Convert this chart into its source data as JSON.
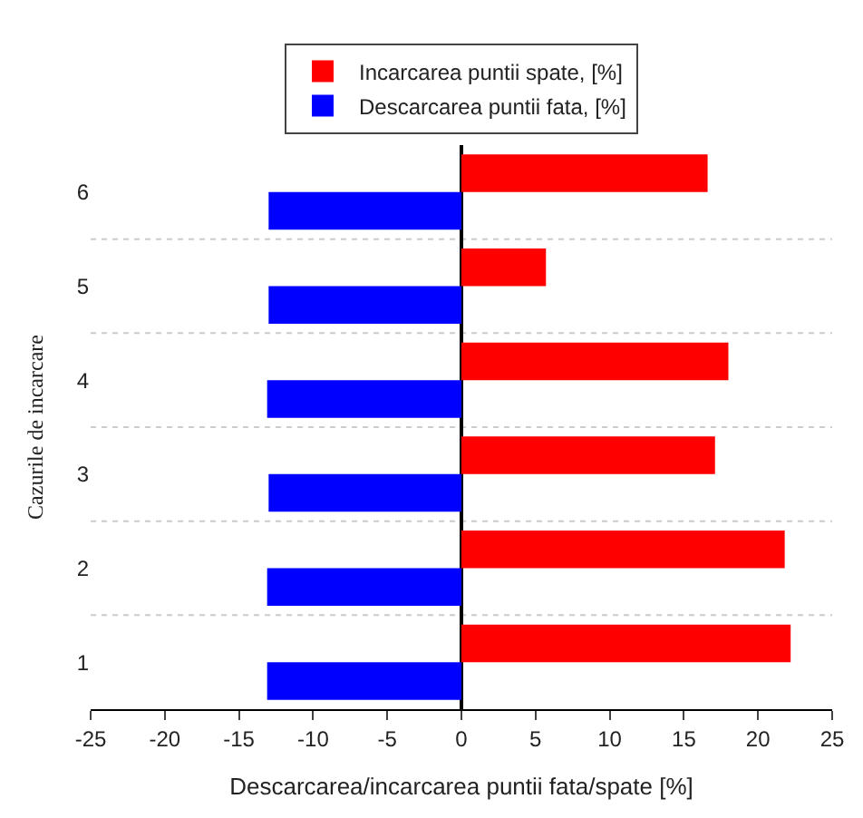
{
  "chart_data": {
    "type": "bar",
    "orientation": "horizontal",
    "xlabel": "Descarcarea/incarcarea puntii fata/spate [%]",
    "ylabel": "Cazurile de incarcare",
    "categories": [
      "6",
      "5",
      "4",
      "3",
      "2",
      "1"
    ],
    "series": [
      {
        "name": "Incarcarea puntii spate, [%]",
        "color": "#ff0000",
        "values": [
          16.6,
          5.7,
          18.0,
          17.1,
          21.8,
          22.2
        ]
      },
      {
        "name": "Descarcarea puntii fata, [%]",
        "color": "#0000ff",
        "values": [
          -13.0,
          -13.0,
          -13.1,
          -13.0,
          -13.1,
          -13.1
        ]
      }
    ],
    "xlim": [
      -25,
      25
    ],
    "xticks": [
      -25,
      -20,
      -15,
      -10,
      -5,
      0,
      5,
      10,
      15,
      20,
      25
    ],
    "grid": "y",
    "legend": "top"
  }
}
